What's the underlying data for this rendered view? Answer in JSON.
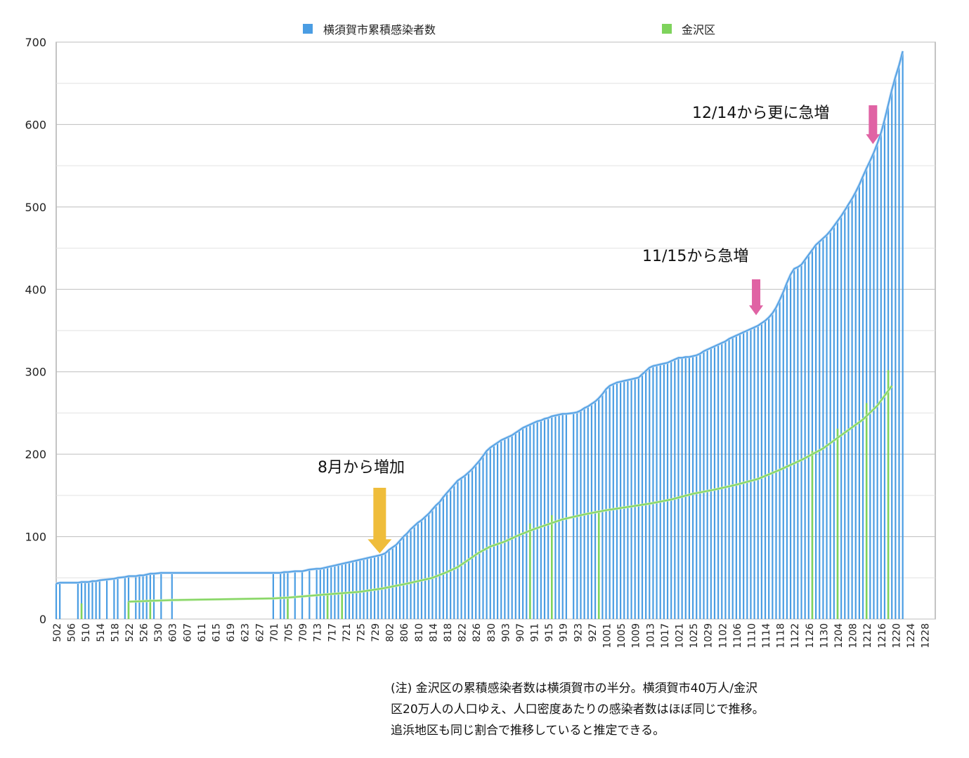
{
  "chart_data": {
    "type": "bar",
    "ylim": [
      0,
      700
    ],
    "yticks": [
      0,
      100,
      200,
      300,
      400,
      500,
      600,
      700
    ],
    "grid": true,
    "legend_position": "top",
    "colors": {
      "yokosuka": "#4a9de3",
      "kanazawa": "#7ed35c"
    },
    "series": [
      {
        "name": "横須賀市累積感染者数",
        "style": "bars with smoothed line",
        "points": [
          [
            "502",
            43
          ],
          [
            "503",
            44
          ],
          [
            "508",
            44
          ],
          [
            "509",
            45
          ],
          [
            "510",
            45
          ],
          [
            "511",
            45
          ],
          [
            "512",
            46
          ],
          [
            "513",
            46
          ],
          [
            "514",
            47
          ],
          [
            "516",
            48
          ],
          [
            "518",
            49
          ],
          [
            "519",
            50
          ],
          [
            "521",
            51
          ],
          [
            "522",
            52
          ],
          [
            "524",
            52
          ],
          [
            "525",
            53
          ],
          [
            "526",
            53
          ],
          [
            "527",
            54
          ],
          [
            "528",
            55
          ],
          [
            "529",
            55
          ],
          [
            "531",
            56
          ],
          [
            "603",
            56
          ],
          [
            "701",
            56
          ],
          [
            "703",
            56
          ],
          [
            "704",
            57
          ],
          [
            "705",
            57
          ],
          [
            "707",
            58
          ],
          [
            "709",
            58
          ],
          [
            "711",
            60
          ],
          [
            "713",
            61
          ],
          [
            "714",
            61
          ],
          [
            "715",
            62
          ],
          [
            "716",
            63
          ],
          [
            "717",
            64
          ],
          [
            "718",
            65
          ],
          [
            "719",
            66
          ],
          [
            "720",
            67
          ],
          [
            "721",
            68
          ],
          [
            "722",
            69
          ],
          [
            "723",
            70
          ],
          [
            "724",
            71
          ],
          [
            "725",
            72
          ],
          [
            "726",
            73
          ],
          [
            "727",
            74
          ],
          [
            "728",
            75
          ],
          [
            "729",
            76
          ],
          [
            "730",
            77
          ],
          [
            "731",
            78
          ],
          [
            "801",
            80
          ],
          [
            "802",
            84
          ],
          [
            "803",
            87
          ],
          [
            "804",
            90
          ],
          [
            "805",
            95
          ],
          [
            "806",
            100
          ],
          [
            "807",
            104
          ],
          [
            "808",
            109
          ],
          [
            "809",
            113
          ],
          [
            "810",
            117
          ],
          [
            "811",
            120
          ],
          [
            "812",
            124
          ],
          [
            "813",
            128
          ],
          [
            "814",
            133
          ],
          [
            "815",
            138
          ],
          [
            "816",
            142
          ],
          [
            "817",
            148
          ],
          [
            "818",
            153
          ],
          [
            "819",
            158
          ],
          [
            "820",
            163
          ],
          [
            "821",
            168
          ],
          [
            "822",
            171
          ],
          [
            "823",
            174
          ],
          [
            "824",
            178
          ],
          [
            "825",
            182
          ],
          [
            "826",
            187
          ],
          [
            "827",
            192
          ],
          [
            "828",
            198
          ],
          [
            "829",
            204
          ],
          [
            "830",
            208
          ],
          [
            "831",
            211
          ],
          [
            "901",
            214
          ],
          [
            "902",
            217
          ],
          [
            "903",
            219
          ],
          [
            "904",
            221
          ],
          [
            "905",
            223
          ],
          [
            "906",
            226
          ],
          [
            "907",
            229
          ],
          [
            "908",
            232
          ],
          [
            "909",
            234
          ],
          [
            "910",
            236
          ],
          [
            "911",
            238
          ],
          [
            "912",
            240
          ],
          [
            "913",
            241
          ],
          [
            "914",
            243
          ],
          [
            "915",
            244
          ],
          [
            "916",
            246
          ],
          [
            "917",
            247
          ],
          [
            "918",
            248
          ],
          [
            "919",
            249
          ],
          [
            "920",
            249
          ],
          [
            "922",
            250
          ],
          [
            "923",
            251
          ],
          [
            "924",
            253
          ],
          [
            "925",
            256
          ],
          [
            "926",
            258
          ],
          [
            "927",
            261
          ],
          [
            "928",
            264
          ],
          [
            "929",
            268
          ],
          [
            "930",
            273
          ],
          [
            "1001",
            279
          ],
          [
            "1002",
            283
          ],
          [
            "1003",
            285
          ],
          [
            "1004",
            287
          ],
          [
            "1005",
            288
          ],
          [
            "1006",
            289
          ],
          [
            "1007",
            290
          ],
          [
            "1008",
            291
          ],
          [
            "1009",
            292
          ],
          [
            "1010",
            293
          ],
          [
            "1011",
            297
          ],
          [
            "1012",
            301
          ],
          [
            "1013",
            305
          ],
          [
            "1014",
            307
          ],
          [
            "1015",
            308
          ],
          [
            "1016",
            309
          ],
          [
            "1017",
            310
          ],
          [
            "1018",
            311
          ],
          [
            "1019",
            313
          ],
          [
            "1020",
            315
          ],
          [
            "1021",
            317
          ],
          [
            "1022",
            317
          ],
          [
            "1023",
            318
          ],
          [
            "1024",
            318
          ],
          [
            "1025",
            319
          ],
          [
            "1026",
            320
          ],
          [
            "1027",
            322
          ],
          [
            "1028",
            325
          ],
          [
            "1029",
            327
          ],
          [
            "1030",
            329
          ],
          [
            "1031",
            331
          ],
          [
            "1101",
            333
          ],
          [
            "1102",
            335
          ],
          [
            "1103",
            337
          ],
          [
            "1104",
            340
          ],
          [
            "1105",
            342
          ],
          [
            "1106",
            344
          ],
          [
            "1107",
            346
          ],
          [
            "1108",
            348
          ],
          [
            "1109",
            350
          ],
          [
            "1110",
            352
          ],
          [
            "1111",
            354
          ],
          [
            "1112",
            356
          ],
          [
            "1113",
            359
          ],
          [
            "1114",
            362
          ],
          [
            "1115",
            366
          ],
          [
            "1116",
            371
          ],
          [
            "1117",
            378
          ],
          [
            "1118",
            387
          ],
          [
            "1119",
            397
          ],
          [
            "1120",
            408
          ],
          [
            "1121",
            418
          ],
          [
            "1122",
            425
          ],
          [
            "1123",
            427
          ],
          [
            "1124",
            430
          ],
          [
            "1125",
            436
          ],
          [
            "1126",
            442
          ],
          [
            "1127",
            448
          ],
          [
            "1128",
            454
          ],
          [
            "1129",
            458
          ],
          [
            "1130",
            462
          ],
          [
            "1201",
            466
          ],
          [
            "1202",
            471
          ],
          [
            "1203",
            477
          ],
          [
            "1204",
            483
          ],
          [
            "1205",
            489
          ],
          [
            "1206",
            496
          ],
          [
            "1207",
            503
          ],
          [
            "1208",
            510
          ],
          [
            "1209",
            518
          ],
          [
            "1210",
            527
          ],
          [
            "1211",
            537
          ],
          [
            "1212",
            547
          ],
          [
            "1213",
            556
          ],
          [
            "1214",
            566
          ],
          [
            "1215",
            577
          ],
          [
            "1216",
            590
          ],
          [
            "1217",
            606
          ],
          [
            "1218",
            624
          ],
          [
            "1219",
            642
          ],
          [
            "1220",
            658
          ],
          [
            "1221",
            672
          ],
          [
            "1222",
            689
          ]
        ]
      },
      {
        "name": "金沢区",
        "style": "sparse bars with smoothed line",
        "points": [
          [
            "509",
            19
          ],
          [
            "522",
            21
          ],
          [
            "528",
            24
          ],
          [
            "705",
            26
          ],
          [
            "716",
            30
          ],
          [
            "720",
            32
          ],
          [
            "910",
            116
          ],
          [
            "916",
            126
          ],
          [
            "929",
            131
          ],
          [
            "1127",
            204
          ],
          [
            "1204",
            231
          ],
          [
            "1212",
            262
          ],
          [
            "1218",
            302
          ]
        ],
        "line": [
          [
            "522",
            21
          ],
          [
            "603",
            23
          ],
          [
            "701",
            25
          ],
          [
            "705",
            26
          ],
          [
            "716",
            30
          ],
          [
            "725",
            33
          ],
          [
            "731",
            37
          ],
          [
            "807",
            43
          ],
          [
            "814",
            50
          ],
          [
            "818",
            57
          ],
          [
            "821",
            63
          ],
          [
            "824",
            72
          ],
          [
            "827",
            81
          ],
          [
            "830",
            88
          ],
          [
            "903",
            94
          ],
          [
            "907",
            102
          ],
          [
            "911",
            109
          ],
          [
            "915",
            115
          ],
          [
            "919",
            121
          ],
          [
            "925",
            127
          ],
          [
            "1001",
            132
          ],
          [
            "1007",
            136
          ],
          [
            "1013",
            140
          ],
          [
            "1019",
            145
          ],
          [
            "1025",
            152
          ],
          [
            "1031",
            157
          ],
          [
            "1106",
            163
          ],
          [
            "1112",
            170
          ],
          [
            "1118",
            181
          ],
          [
            "1124",
            193
          ],
          [
            "1130",
            207
          ],
          [
            "1205",
            223
          ],
          [
            "1211",
            242
          ],
          [
            "1215",
            259
          ],
          [
            "1219",
            283
          ]
        ]
      }
    ],
    "xticks": [
      "502",
      "506",
      "510",
      "514",
      "518",
      "522",
      "526",
      "530",
      "603",
      "607",
      "611",
      "615",
      "619",
      "623",
      "627",
      "701",
      "705",
      "709",
      "713",
      "717",
      "721",
      "725",
      "729",
      "802",
      "806",
      "810",
      "814",
      "818",
      "822",
      "826",
      "830",
      "903",
      "907",
      "911",
      "915",
      "919",
      "923",
      "927",
      "1001",
      "1005",
      "1009",
      "1013",
      "1017",
      "1021",
      "1025",
      "1029",
      "1102",
      "1106",
      "1110",
      "1114",
      "1118",
      "1122",
      "1126",
      "1130",
      "1204",
      "1208",
      "1212",
      "1216",
      "1220",
      "1224",
      "1228"
    ],
    "annotations": [
      {
        "text": "8月から増加",
        "color": "#efbd3b",
        "at": "731",
        "value": 90
      },
      {
        "text": "11/15から急増",
        "color": "#e063a4",
        "at": "1114",
        "value": 372
      },
      {
        "text": "12/14から更に急増",
        "color": "#e063a4",
        "at": "1213",
        "value": 578
      }
    ]
  },
  "note": {
    "lines": [
      "(注) 金沢区の累積感染者数は横須賀市の半分。横須賀市40万人/金沢",
      "区20万人の人口ゆえ、人口密度あたりの感染者数はほぼ同じで推移。",
      "追浜地区も同じ割合で推移していると推定できる。"
    ]
  }
}
